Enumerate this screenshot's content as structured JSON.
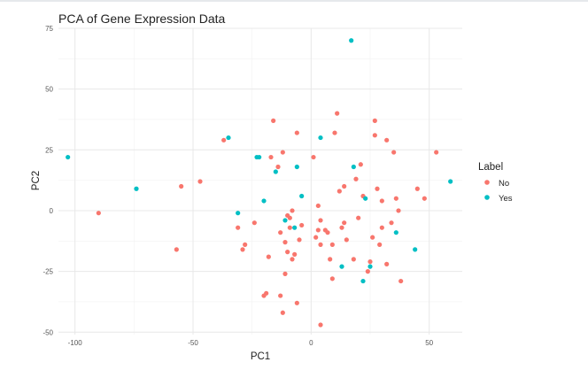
{
  "chart_data": {
    "type": "scatter",
    "title": "PCA of Gene Expression Data",
    "xlabel": "PC1",
    "ylabel": "PC2",
    "xlim": [
      -107,
      64
    ],
    "ylim": [
      -51,
      75
    ],
    "xticks": [
      -100,
      -50,
      0,
      50
    ],
    "yticks": [
      75,
      50,
      25,
      0,
      -25,
      -50
    ],
    "grid": true,
    "legend": {
      "title": "Label",
      "position": "right"
    },
    "series": [
      {
        "name": "No",
        "color": "#F8766D",
        "points": [
          [
            -90,
            -1
          ],
          [
            -57,
            -16
          ],
          [
            -55,
            10
          ],
          [
            -47,
            12
          ],
          [
            -37,
            29
          ],
          [
            -31,
            -7
          ],
          [
            -29,
            -16
          ],
          [
            -28,
            -14
          ],
          [
            -24,
            -5
          ],
          [
            -20,
            -35
          ],
          [
            -19,
            -34
          ],
          [
            -18,
            -19
          ],
          [
            -17,
            22
          ],
          [
            -16,
            37
          ],
          [
            -14,
            18
          ],
          [
            -13,
            -9
          ],
          [
            -13,
            -35
          ],
          [
            -12,
            24
          ],
          [
            -12,
            -42
          ],
          [
            -11,
            -26
          ],
          [
            -11,
            -13
          ],
          [
            -10,
            -2
          ],
          [
            -10,
            -17
          ],
          [
            -9,
            -3
          ],
          [
            -9,
            -7
          ],
          [
            -8,
            0
          ],
          [
            -8,
            -20
          ],
          [
            -7,
            -18
          ],
          [
            -6,
            -38
          ],
          [
            -6,
            32
          ],
          [
            -5,
            -12
          ],
          [
            -4,
            -6
          ],
          [
            1,
            22
          ],
          [
            2,
            -11
          ],
          [
            3,
            -8
          ],
          [
            3,
            2
          ],
          [
            4,
            -47
          ],
          [
            4,
            -4
          ],
          [
            4,
            -14
          ],
          [
            6,
            -8
          ],
          [
            7,
            -9
          ],
          [
            8,
            -20
          ],
          [
            9,
            -28
          ],
          [
            9,
            -14
          ],
          [
            10,
            32
          ],
          [
            11,
            40
          ],
          [
            12,
            8
          ],
          [
            13,
            -7
          ],
          [
            14,
            10
          ],
          [
            14,
            -5
          ],
          [
            15,
            -12
          ],
          [
            18,
            -20
          ],
          [
            19,
            13
          ],
          [
            20,
            -3
          ],
          [
            21,
            19
          ],
          [
            22,
            6
          ],
          [
            24,
            -25
          ],
          [
            25,
            -21
          ],
          [
            26,
            -11
          ],
          [
            27,
            31
          ],
          [
            27,
            37
          ],
          [
            28,
            9
          ],
          [
            29,
            -14
          ],
          [
            30,
            -7
          ],
          [
            30,
            4
          ],
          [
            32,
            29
          ],
          [
            32,
            -22
          ],
          [
            34,
            -5
          ],
          [
            35,
            24
          ],
          [
            36,
            5
          ],
          [
            37,
            0
          ],
          [
            38,
            -29
          ],
          [
            45,
            9
          ],
          [
            48,
            5
          ],
          [
            53,
            24
          ]
        ]
      },
      {
        "name": "Yes",
        "color": "#00BFC4",
        "points": [
          [
            -103,
            22
          ],
          [
            -74,
            9
          ],
          [
            -35,
            30
          ],
          [
            -31,
            -1
          ],
          [
            -23,
            22
          ],
          [
            -22,
            22
          ],
          [
            -20,
            4
          ],
          [
            -15,
            16
          ],
          [
            -11,
            -4
          ],
          [
            -7,
            -7
          ],
          [
            -6,
            18
          ],
          [
            -4,
            6
          ],
          [
            4,
            30
          ],
          [
            13,
            -23
          ],
          [
            17,
            70
          ],
          [
            18,
            18
          ],
          [
            22,
            -29
          ],
          [
            23,
            5
          ],
          [
            25,
            -23
          ],
          [
            36,
            -9
          ],
          [
            44,
            -16
          ],
          [
            59,
            12
          ]
        ]
      }
    ]
  }
}
